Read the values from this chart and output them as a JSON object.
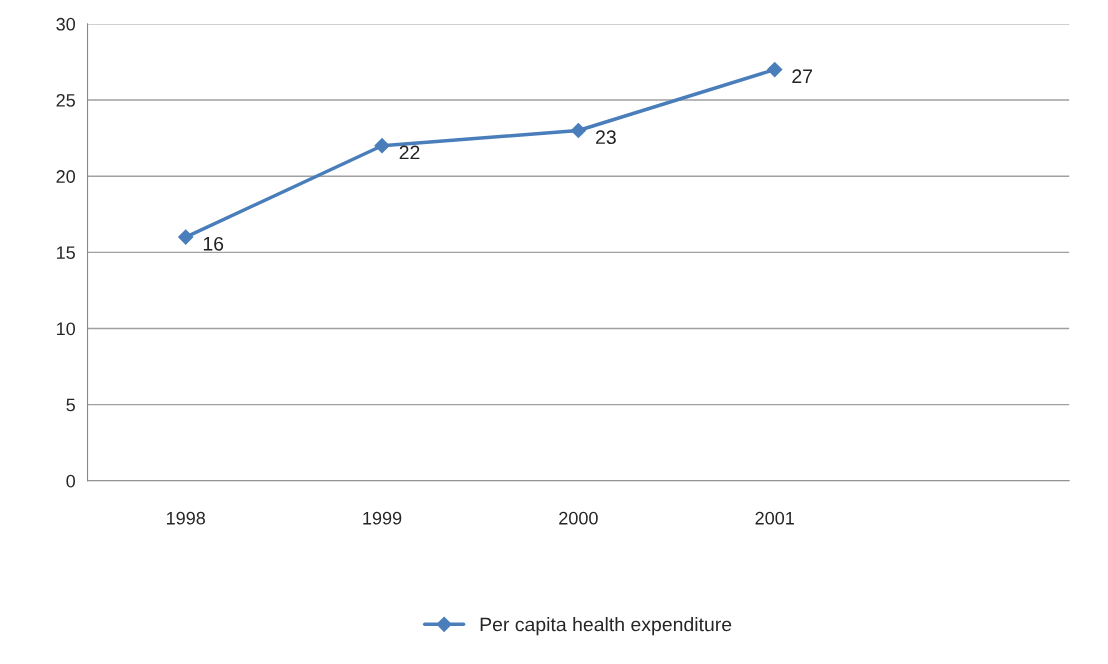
{
  "chart_data": {
    "type": "line",
    "categories": [
      "1998",
      "1999",
      "2000",
      "2001",
      null
    ],
    "series": [
      {
        "name": "Per capita health expenditure",
        "color": "#4a7ebb",
        "values": [
          16,
          22,
          23,
          27,
          null
        ]
      }
    ],
    "ylim": [
      0,
      30
    ],
    "yticks": [
      0,
      5,
      10,
      15,
      20,
      25,
      30
    ],
    "grid": "y",
    "legend": "bottom",
    "marker": "diamond",
    "line_style": "solid",
    "data_labels": true
  }
}
